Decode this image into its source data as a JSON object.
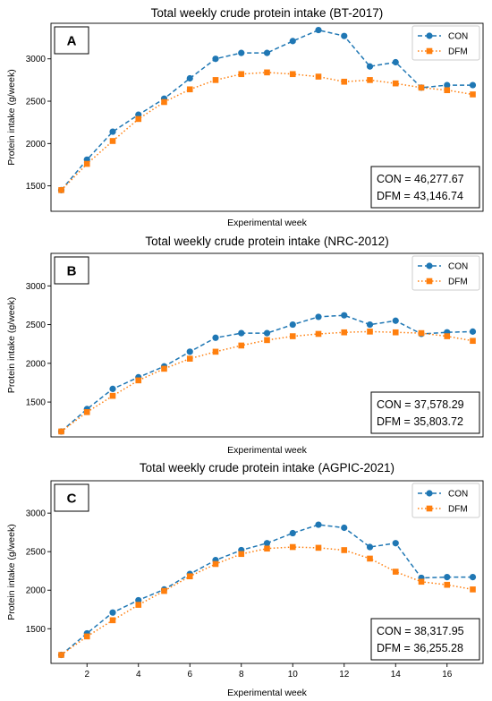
{
  "colors": {
    "con": "#1f77b4",
    "dfm": "#ff7f0e"
  },
  "chart_data": [
    {
      "type": "line",
      "panel": "A",
      "title": "Total weekly crude protein intake (BT-2017)",
      "xlabel": "Experimental week",
      "ylabel": "Protein intake (g/week)",
      "ylim": [
        1200,
        3420
      ],
      "yticks": [
        1500,
        2000,
        2500,
        3000
      ],
      "xlim": [
        0.6,
        17.4
      ],
      "xticks": [],
      "x": [
        1,
        2,
        3,
        4,
        5,
        6,
        7,
        8,
        9,
        10,
        11,
        12,
        13,
        14,
        15,
        16,
        17
      ],
      "series": [
        {
          "name": "CON",
          "style": "dashed-circle",
          "values": [
            1450,
            1810,
            2140,
            2340,
            2530,
            2770,
            3000,
            3070,
            3070,
            3210,
            3340,
            3270,
            2910,
            2960,
            2660,
            2690,
            2690
          ]
        },
        {
          "name": "DFM",
          "style": "dotted-square",
          "values": [
            1450,
            1760,
            2030,
            2290,
            2490,
            2640,
            2750,
            2820,
            2840,
            2820,
            2790,
            2730,
            2750,
            2710,
            2660,
            2630,
            2580
          ]
        }
      ],
      "legend": "top-right",
      "annotation": [
        "CON = 46,277.67",
        "DFM = 43,146.74"
      ]
    },
    {
      "type": "line",
      "panel": "B",
      "title": "Total weekly crude protein intake (NRC-2012)",
      "xlabel": "Experimental week",
      "ylabel": "Protein intake (g/week)",
      "ylim": [
        1050,
        3420
      ],
      "yticks": [
        1500,
        2000,
        2500,
        3000
      ],
      "xlim": [
        0.6,
        17.4
      ],
      "xticks": [],
      "x": [
        1,
        2,
        3,
        4,
        5,
        6,
        7,
        8,
        9,
        10,
        11,
        12,
        13,
        14,
        15,
        16,
        17
      ],
      "series": [
        {
          "name": "CON",
          "style": "dashed-circle",
          "values": [
            1120,
            1410,
            1670,
            1820,
            1960,
            2150,
            2330,
            2390,
            2390,
            2500,
            2600,
            2620,
            2500,
            2550,
            2380,
            2400,
            2410
          ]
        },
        {
          "name": "DFM",
          "style": "dotted-square",
          "values": [
            1120,
            1370,
            1580,
            1780,
            1930,
            2060,
            2150,
            2230,
            2300,
            2350,
            2380,
            2400,
            2410,
            2400,
            2390,
            2350,
            2290
          ]
        }
      ],
      "legend": "top-right",
      "annotation": [
        "CON = 37,578.29",
        "DFM = 35,803.72"
      ]
    },
    {
      "type": "line",
      "panel": "C",
      "title": "Total weekly crude protein intake (AGPIC-2021)",
      "xlabel": "Experimental week",
      "ylabel": "Protein intake (g/week)",
      "ylim": [
        1050,
        3420
      ],
      "yticks": [
        1500,
        2000,
        2500,
        3000
      ],
      "xlim": [
        0.6,
        17.4
      ],
      "xticks": [
        2,
        4,
        6,
        8,
        10,
        12,
        14,
        16
      ],
      "x": [
        1,
        2,
        3,
        4,
        5,
        6,
        7,
        8,
        9,
        10,
        11,
        12,
        13,
        14,
        15,
        16,
        17
      ],
      "series": [
        {
          "name": "CON",
          "style": "dashed-circle",
          "values": [
            1160,
            1440,
            1710,
            1870,
            2010,
            2210,
            2390,
            2520,
            2610,
            2740,
            2850,
            2810,
            2560,
            2610,
            2160,
            2170,
            2170
          ]
        },
        {
          "name": "DFM",
          "style": "dotted-square",
          "values": [
            1160,
            1400,
            1610,
            1810,
            1990,
            2180,
            2340,
            2470,
            2540,
            2560,
            2550,
            2520,
            2410,
            2240,
            2110,
            2070,
            2010
          ]
        }
      ],
      "legend": "top-right",
      "annotation": [
        "CON = 38,317.95",
        "DFM = 36,255.28"
      ]
    }
  ]
}
